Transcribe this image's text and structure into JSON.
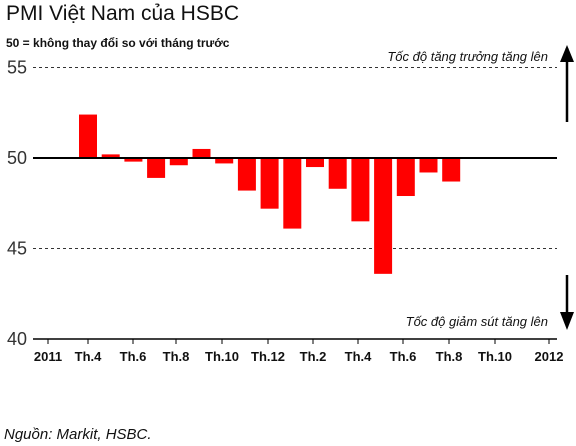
{
  "chart_data": {
    "type": "bar",
    "title": "PMI Việt Nam của HSBC",
    "subtitle": "50 = không thay đổi so với tháng trước",
    "baseline": 50,
    "ylim": [
      40,
      56
    ],
    "yticks": [
      40,
      45,
      50,
      55
    ],
    "grid": "dashed lines at 45 and 55",
    "annotation_up": "Tốc độ tăng trưởng tăng lên",
    "annotation_down": "Tốc độ giảm sút tăng lên",
    "x_tick_labels": [
      "2011",
      "Th.4",
      "Th.6",
      "Th.8",
      "Th.10",
      "Th.12",
      "Th.2",
      "Th.4",
      "Th.6",
      "Th.8",
      "Th.10",
      "2012"
    ],
    "bar_color": "#ff0000",
    "values": [
      52.4,
      50.2,
      49.8,
      48.9,
      49.6,
      50.5,
      49.7,
      48.2,
      47.2,
      46.1,
      49.5,
      48.3,
      46.5,
      43.6,
      47.9,
      49.2,
      48.7
    ],
    "source": "Nguồn: Markit, HSBC."
  }
}
